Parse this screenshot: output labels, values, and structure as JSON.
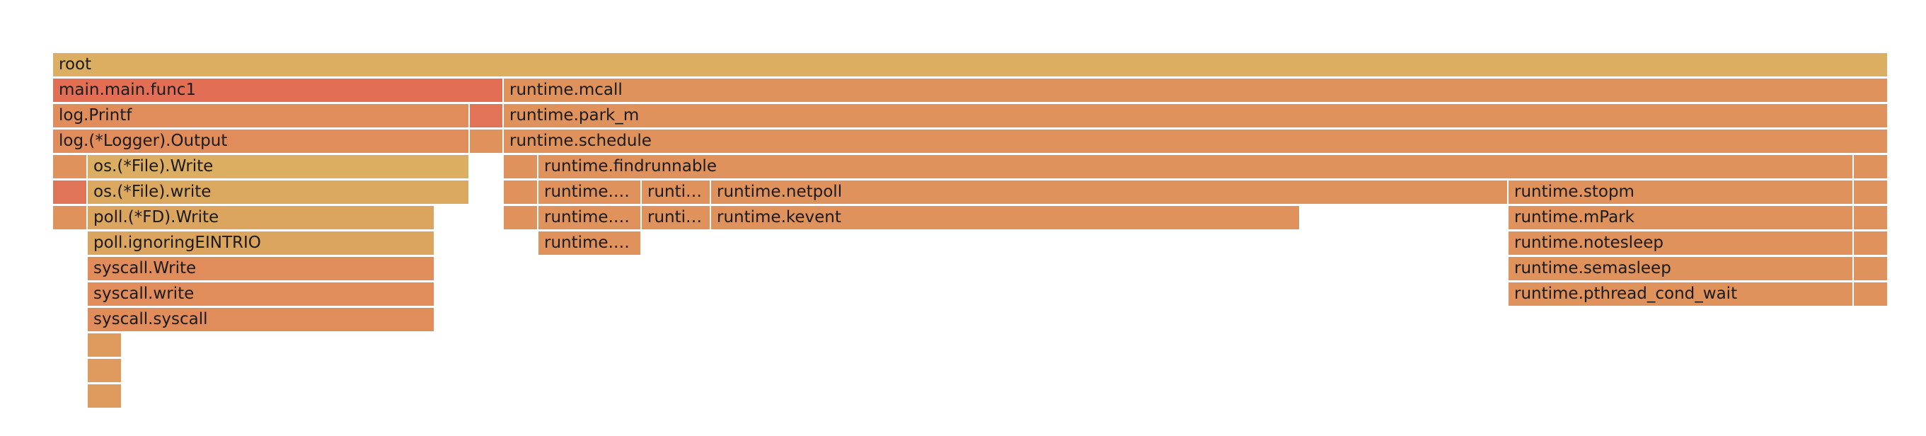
{
  "flamegraph": {
    "frames": [
      {
        "label": "root",
        "color": "#dbae62"
      },
      {
        "label": "main.main.func1",
        "color": "#e26f53"
      },
      {
        "label": "runtime.mcall",
        "color": "#df925c"
      },
      {
        "label": "log.Printf",
        "color": "#e08c5b"
      },
      {
        "label": "",
        "color": "#e17457"
      },
      {
        "label": "runtime.park_m",
        "color": "#df925c"
      },
      {
        "label": "log.(*Logger).Output",
        "color": "#e08c5b"
      },
      {
        "label": "",
        "color": "#df925c"
      },
      {
        "label": "runtime.schedule",
        "color": "#df925c"
      },
      {
        "label": "",
        "color": "#df925c"
      },
      {
        "label": "os.(*File).Write",
        "color": "#dbae62"
      },
      {
        "label": "",
        "color": "#df925c"
      },
      {
        "label": "runtime.findrunnable",
        "color": "#df925c"
      },
      {
        "label": "",
        "color": "#df925c"
      },
      {
        "label": "",
        "color": "#e07458"
      },
      {
        "label": "os.(*File).write",
        "color": "#dba860"
      },
      {
        "label": "",
        "color": "#df925c"
      },
      {
        "label": "runtime.…",
        "color": "#df925c"
      },
      {
        "label": "runti…",
        "color": "#df925c"
      },
      {
        "label": "runtime.netpoll",
        "color": "#df925c"
      },
      {
        "label": "runtime.stopm",
        "color": "#df925c"
      },
      {
        "label": "",
        "color": "#df925c"
      },
      {
        "label": "",
        "color": "#df925c"
      },
      {
        "label": "poll.(*FD).Write",
        "color": "#dca55f"
      },
      {
        "label": "",
        "color": "#df925c"
      },
      {
        "label": "runtime.…",
        "color": "#df925c"
      },
      {
        "label": "runti…",
        "color": "#df925c"
      },
      {
        "label": "runtime.kevent",
        "color": "#df925c"
      },
      {
        "label": "runtime.mPark",
        "color": "#df925c"
      },
      {
        "label": "",
        "color": "#df925c"
      },
      {
        "label": "poll.ignoringEINTRIO",
        "color": "#dca55f"
      },
      {
        "label": "runtime.…",
        "color": "#df925c"
      },
      {
        "label": "runtime.notesleep",
        "color": "#df925c"
      },
      {
        "label": "",
        "color": "#df925c"
      },
      {
        "label": "syscall.Write",
        "color": "#e08c5b"
      },
      {
        "label": "runtime.semasleep",
        "color": "#df925c"
      },
      {
        "label": "",
        "color": "#df925c"
      },
      {
        "label": "syscall.write",
        "color": "#e08c5b"
      },
      {
        "label": "runtime.pthread_cond_wait",
        "color": "#df925c"
      },
      {
        "label": "",
        "color": "#df925c"
      },
      {
        "label": "syscall.syscall",
        "color": "#e08c5b"
      },
      {
        "label": "",
        "color": "#df9a5d"
      },
      {
        "label": "",
        "color": "#df9a5d"
      },
      {
        "label": "",
        "color": "#df9a5d"
      }
    ]
  }
}
